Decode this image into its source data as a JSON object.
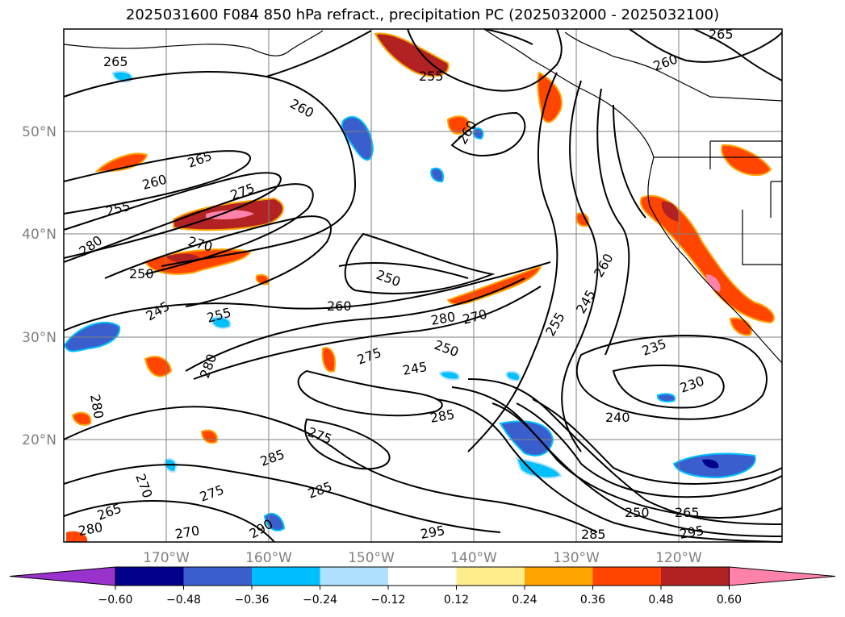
{
  "title": "2025031600 F084 850 hPa refract., precipitation PC (2025032000 - 2025032100)",
  "lat_labels": [
    "50°N",
    "40°N",
    "30°N",
    "20°N"
  ],
  "lon_labels": [
    "170°W",
    "160°W",
    "150°W",
    "140°W",
    "130°W",
    "120°W"
  ],
  "colorbar": {
    "colors": [
      "#9a32cd",
      "#00008b",
      "#3a5fcd",
      "#00bfff",
      "#b0e2ff",
      "#ffffff",
      "#ffec8b",
      "#ffa500",
      "#ff4500",
      "#b22222",
      "#ff82ab"
    ],
    "tick_labels": [
      "−0.60",
      "−0.48",
      "−0.36",
      "−0.24",
      "−0.12",
      "0.12",
      "0.24",
      "0.36",
      "0.48",
      "0.60"
    ]
  },
  "contour_labels": [
    "265",
    "260",
    "265",
    "255",
    "275",
    "270",
    "280",
    "250",
    "245",
    "255",
    "260",
    "280",
    "270",
    "250",
    "260",
    "245",
    "255",
    "280",
    "285",
    "275",
    "285",
    "270",
    "275",
    "265",
    "280",
    "270",
    "290",
    "295",
    "285",
    "250",
    "265",
    "295",
    "235",
    "230",
    "240",
    "285",
    "260",
    "260",
    "255",
    "245",
    "280",
    "250",
    "275",
    "260",
    "265"
  ],
  "colors": {
    "precip_warm": "#ff4500",
    "precip_cool": "#3a5fcd",
    "gridline": "#808080"
  }
}
